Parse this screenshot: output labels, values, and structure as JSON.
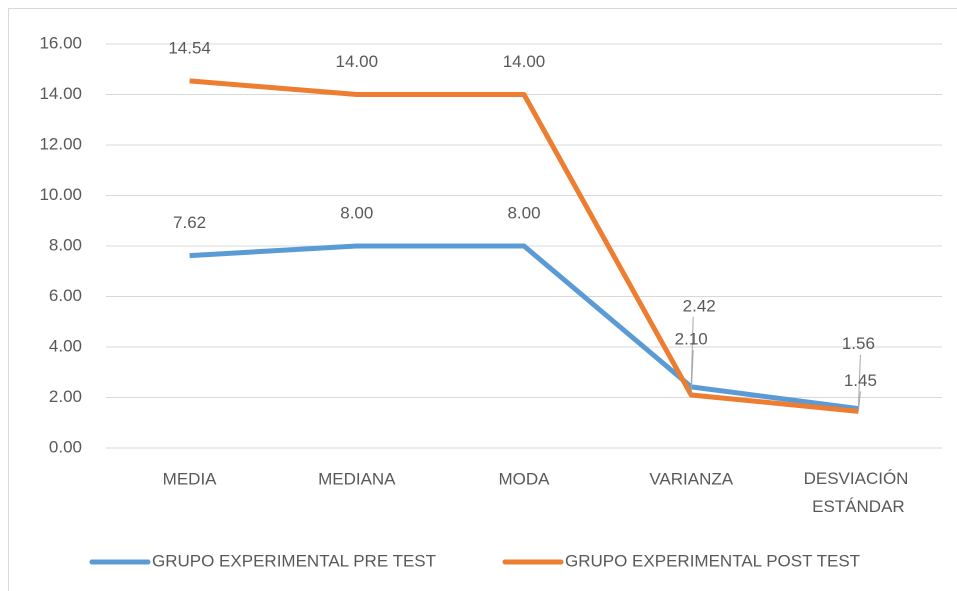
{
  "chart_data": {
    "type": "line",
    "categories": [
      "MEDIA",
      "MEDIANA",
      "MODA",
      "VARIANZA",
      "DESVIACIÓN ESTÁNDAR"
    ],
    "series": [
      {
        "name": "GRUPO EXPERIMENTAL PRE TEST",
        "color": "#5b9bd5",
        "values": [
          7.62,
          8,
          8,
          2.42,
          1.56
        ],
        "value_labels": [
          "7.62",
          "8.00",
          "8.00",
          "2.42",
          "1.56"
        ]
      },
      {
        "name": "GRUPO EXPERIMENTAL POST TEST",
        "color": "#ed7d31",
        "values": [
          14.54,
          14,
          14,
          2.1,
          1.45
        ],
        "value_labels": [
          "14.54",
          "14.00",
          "14.00",
          "2.10",
          "1.45"
        ]
      }
    ],
    "ylim": [
      0,
      16
    ],
    "yticks": [
      {
        "value": 0,
        "label": "0.00"
      },
      {
        "value": 2,
        "label": "2.00"
      },
      {
        "value": 4,
        "label": "4.00"
      },
      {
        "value": 6,
        "label": "6.00"
      },
      {
        "value": 8,
        "label": "8.00"
      },
      {
        "value": 10,
        "label": "10.00"
      },
      {
        "value": 12,
        "label": "12.00"
      },
      {
        "value": 14,
        "label": "14.00"
      },
      {
        "value": 16,
        "label": "16.00"
      }
    ],
    "grid": true,
    "legend": "bottom"
  }
}
